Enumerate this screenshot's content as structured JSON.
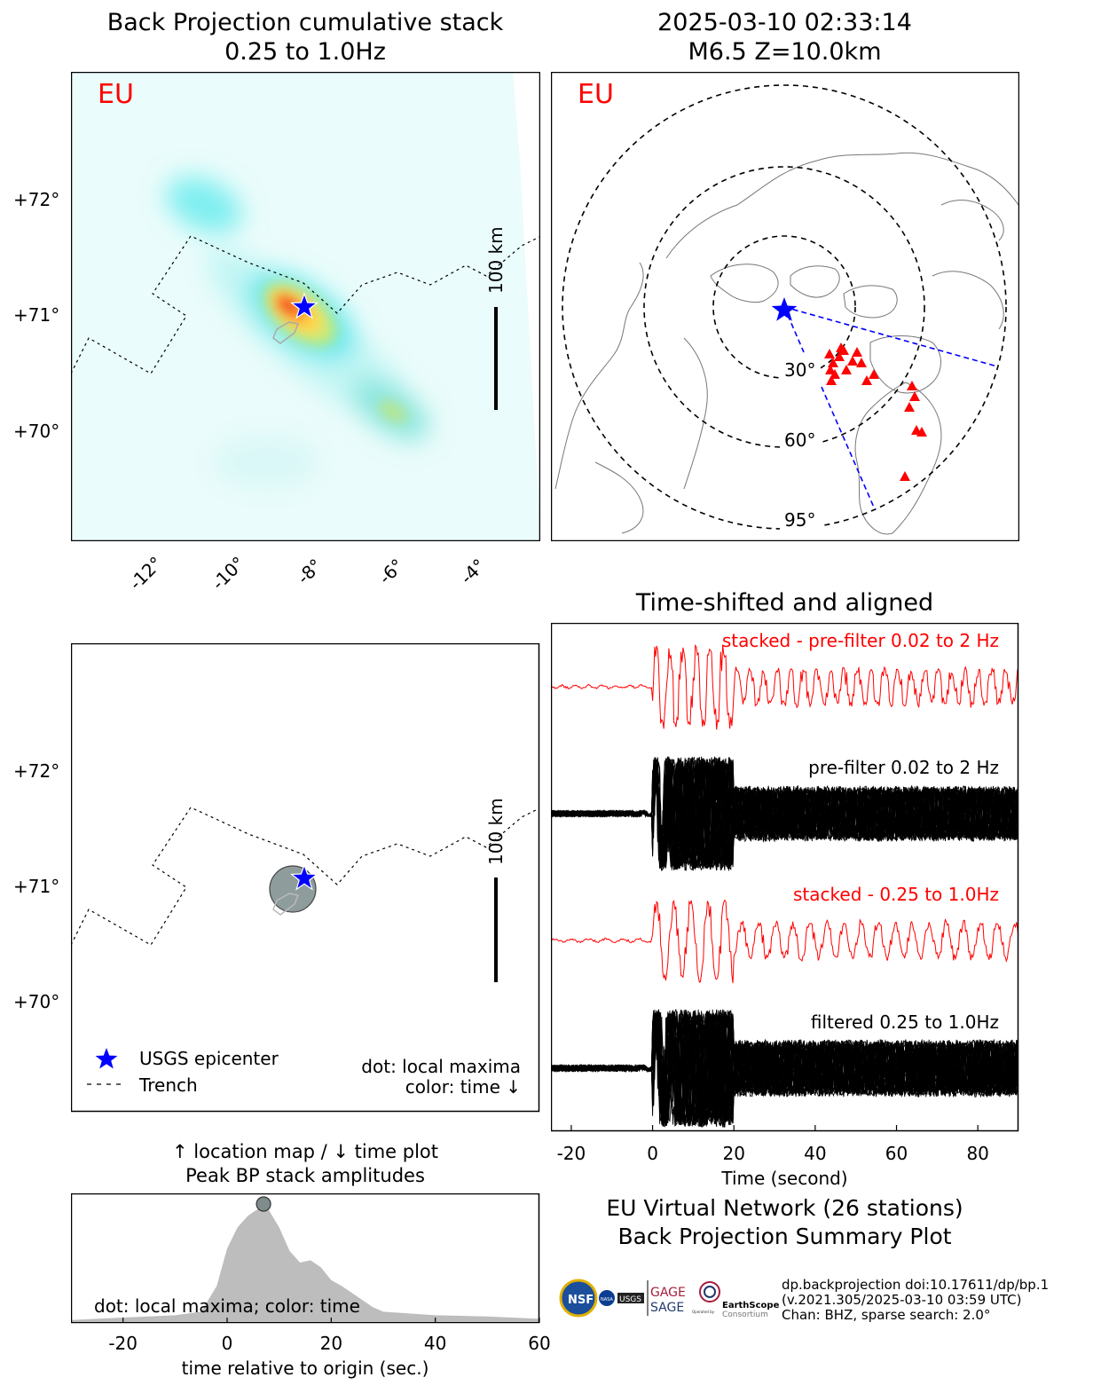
{
  "panel_bp": {
    "title_line1": "Back Projection cumulative stack",
    "title_line2": "0.25 to 1.0Hz",
    "network_label": "EU",
    "scale_bar_label": "100 km",
    "lat_ticks": [
      "+72°",
      "+71°",
      "+70°"
    ],
    "lon_ticks": [
      "-12°",
      "-10°",
      "-8°",
      "-6°",
      "-4°"
    ]
  },
  "panel_globe": {
    "title_line1": "2025-03-10 02:33:14",
    "title_line2": "M6.5 Z=10.0km",
    "network_label": "EU",
    "ring_labels": [
      "30°",
      "60°",
      "95°"
    ]
  },
  "panel_loc": {
    "scale_bar_label": "100 km",
    "lat_ticks": [
      "+72°",
      "+71°",
      "+70°"
    ],
    "legend_epicenter": "USGS epicenter",
    "legend_trench": "Trench",
    "note_line1": "dot: local maxima",
    "note_line2": "color: time ↓"
  },
  "panel_peak": {
    "title_line1": "↑ location map / ↓ time plot",
    "title_line2": "Peak BP stack amplitudes",
    "note": "dot: local maxima; color: time",
    "xlabel": "time relative to origin (sec.)"
  },
  "panel_traces": {
    "title": "Time-shifted and aligned",
    "label_stacked_prefilter": "stacked - pre-filter 0.02 to 2 Hz",
    "label_prefilter": "pre-filter 0.02 to 2 Hz",
    "label_stacked_filtered": "stacked - 0.25 to 1.0Hz",
    "label_filtered": "filtered 0.25 to 1.0Hz",
    "xlabel": "Time (second)"
  },
  "summary": {
    "line1": "EU Virtual Network (26 stations)",
    "line2": "Back Projection Summary Plot"
  },
  "footer": {
    "line1": "dp.backprojection doi:10.17611/dp/bp.1",
    "line2": "(v.2021.305/2025-03-10 03:59 UTC)",
    "line3": "Chan: BHZ, sparse search: 2.0°"
  },
  "logos": {
    "nsf": "NSF",
    "nasa": "NASA",
    "usgs": "USGS",
    "gage": "GAGE",
    "sage": "SAGE",
    "earthscope": "EarthScope",
    "consortium": "Consortium",
    "operated_by": "Operated by"
  },
  "colors": {
    "epicenter": "#0000ff",
    "station": "#ff0000",
    "stack": "#ff0000",
    "peak_fill": "#bdbdbd",
    "peak_dot": "#7f8c8c"
  },
  "chart_data": [
    {
      "type": "heatmap",
      "title": "Back Projection cumulative stack 0.25 to 1.0Hz",
      "x_axis": "longitude",
      "y_axis": "latitude",
      "xticks": [
        -12,
        -10,
        -8,
        -6,
        -4
      ],
      "yticks": [
        72,
        71,
        70
      ],
      "epicenter": {
        "lon": -8.2,
        "lat": 71.1
      },
      "energy_peaks": [
        {
          "lon": -8.3,
          "lat": 71.05,
          "level": "max"
        },
        {
          "lon": -6.0,
          "lat": 70.2,
          "level": "moderate"
        },
        {
          "lon": -10.5,
          "lat": 71.9,
          "level": "low"
        }
      ]
    },
    {
      "type": "scatter",
      "title": "2025-03-10 02:33:14 M6.5 Z=10.0km",
      "distance_rings_deg": [
        30,
        60,
        95
      ],
      "stations": 26
    },
    {
      "type": "scatter",
      "xticks": [
        -12,
        -10,
        -8,
        -6,
        -4
      ],
      "yticks": [
        72,
        71,
        70
      ],
      "local_maxima": [
        {
          "lon": -8.3,
          "lat": 70.95
        }
      ],
      "epicenter": {
        "lon": -8.2,
        "lat": 71.1
      }
    },
    {
      "type": "area",
      "title": "↑ location map / ↓ time plot Peak BP stack amplitudes",
      "xlabel": "time relative to origin (sec.)",
      "xlim": [
        -30,
        60
      ],
      "xticks": [
        -20,
        0,
        20,
        40,
        60
      ],
      "x": [
        -30,
        -20,
        -10,
        -5,
        -2,
        0,
        2,
        4,
        6,
        7,
        8,
        10,
        12,
        14,
        16,
        18,
        20,
        22,
        24,
        26,
        28,
        30,
        40,
        50,
        60
      ],
      "y": [
        0.01,
        0.03,
        0.05,
        0.08,
        0.3,
        0.62,
        0.8,
        0.9,
        0.96,
        1.0,
        0.95,
        0.8,
        0.6,
        0.5,
        0.52,
        0.46,
        0.35,
        0.3,
        0.24,
        0.18,
        0.12,
        0.08,
        0.05,
        0.04,
        0.02
      ],
      "local_maxima": [
        {
          "x": 7,
          "y": 1.0
        }
      ]
    },
    {
      "type": "line",
      "title": "Time-shifted and aligned",
      "xlabel": "Time (second)",
      "xlim": [
        -25,
        90
      ],
      "xticks": [
        -20,
        0,
        20,
        40,
        60,
        80
      ],
      "series": [
        {
          "name": "stacked - pre-filter 0.02 to 2 Hz",
          "color": "#ff0000"
        },
        {
          "name": "pre-filter 0.02 to 2 Hz",
          "color": "#000000"
        },
        {
          "name": "stacked - 0.25 to 1.0Hz",
          "color": "#ff0000"
        },
        {
          "name": "filtered 0.25 to 1.0Hz",
          "color": "#000000"
        }
      ]
    }
  ]
}
